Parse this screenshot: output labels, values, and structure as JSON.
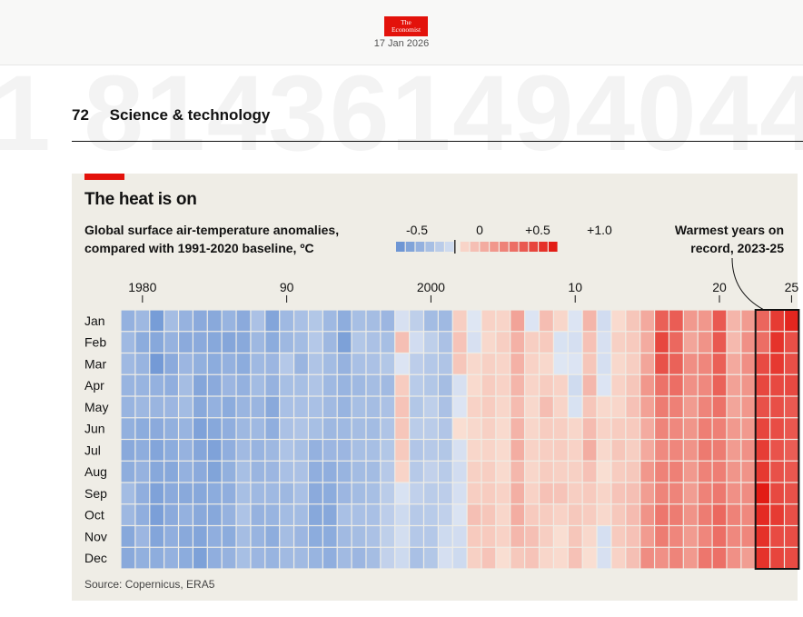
{
  "header": {
    "logo": {
      "line1": "The",
      "line2": "Economist"
    },
    "date": "17 Jan 2026",
    "background_number": "1 814361494044",
    "page_number": "72",
    "section": "Science & technology"
  },
  "source": "Source: Copernicus, ERA5",
  "colors": {
    "accent": "#e3120b",
    "panel": "#efede6",
    "cold": "#5a86c8",
    "warm": "#e3120b"
  },
  "chart_data": {
    "type": "heatmap",
    "title": "The heat is on",
    "subtitle_lines": [
      "Global surface air-temperature anomalies,",
      "compared with 1991-2020 baseline, ºC"
    ],
    "annotation_lines": [
      "Warmest years on",
      "record, 2023-25"
    ],
    "highlight_years": [
      2023,
      2025
    ],
    "months": [
      "Jan",
      "Feb",
      "Mar",
      "Apr",
      "May",
      "Jun",
      "Jul",
      "Aug",
      "Sep",
      "Oct",
      "Nov",
      "Dec"
    ],
    "years": [
      1979,
      1980,
      1981,
      1982,
      1983,
      1984,
      1985,
      1986,
      1987,
      1988,
      1989,
      1990,
      1991,
      1992,
      1993,
      1994,
      1995,
      1996,
      1997,
      1998,
      1999,
      2000,
      2001,
      2002,
      2003,
      2004,
      2005,
      2006,
      2007,
      2008,
      2009,
      2010,
      2011,
      2012,
      2013,
      2014,
      2015,
      2016,
      2017,
      2018,
      2019,
      2020,
      2021,
      2022,
      2023,
      2024,
      2025
    ],
    "x_ticks": [
      {
        "year": 1980,
        "label": "1980"
      },
      {
        "year": 1990,
        "label": "90"
      },
      {
        "year": 2000,
        "label": "2000"
      },
      {
        "year": 2010,
        "label": "10"
      },
      {
        "year": 2020,
        "label": "20"
      },
      {
        "year": 2025,
        "label": "25"
      }
    ],
    "legend": {
      "labels": [
        {
          "value": -0.5,
          "label": "-0.5"
        },
        {
          "value": 0,
          "label": "0"
        },
        {
          "value": 0.5,
          "label": "+0.5"
        },
        {
          "value": 1.0,
          "label": "+1.0"
        }
      ],
      "bins": [
        -0.6,
        -0.5,
        -0.4,
        -0.3,
        -0.2,
        -0.1,
        0.05,
        0.15,
        0.25,
        0.35,
        0.45,
        0.55,
        0.65,
        0.75,
        0.85,
        0.95
      ]
    },
    "values": [
      [
        -0.4,
        -0.34,
        -0.34,
        -0.38,
        -0.38,
        -0.41,
        -0.46,
        -0.43,
        -0.32,
        -0.35,
        -0.47,
        -0.46
      ],
      [
        -0.35,
        -0.44,
        -0.38,
        -0.38,
        -0.35,
        -0.44,
        -0.43,
        -0.39,
        -0.42,
        -0.42,
        -0.36,
        -0.41
      ],
      [
        -0.55,
        -0.47,
        -0.57,
        -0.4,
        -0.37,
        -0.45,
        -0.49,
        -0.47,
        -0.51,
        -0.53,
        -0.49,
        -0.43
      ],
      [
        -0.31,
        -0.39,
        -0.45,
        -0.42,
        -0.36,
        -0.41,
        -0.44,
        -0.47,
        -0.45,
        -0.45,
        -0.42,
        -0.4
      ],
      [
        -0.39,
        -0.45,
        -0.36,
        -0.31,
        -0.32,
        -0.38,
        -0.39,
        -0.4,
        -0.46,
        -0.4,
        -0.46,
        -0.44
      ],
      [
        -0.45,
        -0.45,
        -0.41,
        -0.48,
        -0.46,
        -0.51,
        -0.48,
        -0.45,
        -0.47,
        -0.46,
        -0.49,
        -0.52
      ],
      [
        -0.46,
        -0.47,
        -0.44,
        -0.45,
        -0.4,
        -0.47,
        -0.51,
        -0.5,
        -0.44,
        -0.47,
        -0.42,
        -0.42
      ],
      [
        -0.38,
        -0.48,
        -0.4,
        -0.36,
        -0.44,
        -0.42,
        -0.42,
        -0.41,
        -0.42,
        -0.39,
        -0.44,
        -0.39
      ],
      [
        -0.45,
        -0.46,
        -0.44,
        -0.4,
        -0.37,
        -0.35,
        -0.33,
        -0.3,
        -0.3,
        -0.27,
        -0.31,
        -0.3
      ],
      [
        -0.28,
        -0.35,
        -0.34,
        -0.32,
        -0.37,
        -0.34,
        -0.38,
        -0.37,
        -0.34,
        -0.39,
        -0.38,
        -0.36
      ],
      [
        -0.49,
        -0.44,
        -0.36,
        -0.39,
        -0.46,
        -0.42,
        -0.35,
        -0.36,
        -0.34,
        -0.38,
        -0.43,
        -0.38
      ],
      [
        -0.34,
        -0.35,
        -0.23,
        -0.3,
        -0.29,
        -0.28,
        -0.27,
        -0.29,
        -0.35,
        -0.32,
        -0.31,
        -0.33
      ],
      [
        -0.29,
        -0.32,
        -0.37,
        -0.3,
        -0.29,
        -0.26,
        -0.3,
        -0.28,
        -0.29,
        -0.32,
        -0.36,
        -0.33
      ],
      [
        -0.24,
        -0.23,
        -0.26,
        -0.26,
        -0.29,
        -0.3,
        -0.4,
        -0.42,
        -0.45,
        -0.47,
        -0.44,
        -0.38
      ],
      [
        -0.34,
        -0.35,
        -0.32,
        -0.34,
        -0.33,
        -0.35,
        -0.36,
        -0.42,
        -0.44,
        -0.47,
        -0.44,
        -0.42
      ],
      [
        -0.43,
        -0.52,
        -0.39,
        -0.38,
        -0.38,
        -0.34,
        -0.36,
        -0.38,
        -0.36,
        -0.29,
        -0.33,
        -0.33
      ],
      [
        -0.3,
        -0.24,
        -0.29,
        -0.34,
        -0.3,
        -0.31,
        -0.3,
        -0.32,
        -0.32,
        -0.29,
        -0.31,
        -0.36
      ],
      [
        -0.31,
        -0.28,
        -0.28,
        -0.31,
        -0.31,
        -0.32,
        -0.3,
        -0.32,
        -0.3,
        -0.29,
        -0.28,
        -0.31
      ],
      [
        -0.36,
        -0.3,
        -0.24,
        -0.33,
        -0.28,
        -0.26,
        -0.24,
        -0.22,
        -0.2,
        -0.19,
        -0.18,
        -0.16
      ],
      [
        -0.05,
        0.15,
        -0.02,
        0.09,
        0.13,
        0.12,
        0.1,
        0.05,
        -0.04,
        -0.1,
        -0.07,
        -0.1
      ],
      [
        -0.18,
        -0.08,
        -0.19,
        -0.21,
        -0.24,
        -0.2,
        -0.25,
        -0.22,
        -0.17,
        -0.22,
        -0.23,
        -0.29
      ],
      [
        -0.32,
        -0.18,
        -0.23,
        -0.24,
        -0.18,
        -0.2,
        -0.22,
        -0.16,
        -0.2,
        -0.21,
        -0.23,
        -0.24
      ],
      [
        -0.34,
        -0.28,
        -0.26,
        -0.31,
        -0.28,
        -0.25,
        -0.24,
        -0.21,
        -0.19,
        -0.17,
        -0.1,
        -0.06
      ],
      [
        0.08,
        0.13,
        0.12,
        -0.05,
        -0.02,
        0.0,
        -0.05,
        -0.08,
        -0.06,
        -0.03,
        -0.08,
        -0.1
      ],
      [
        -0.01,
        -0.05,
        0.03,
        0.02,
        0.06,
        0.03,
        0.04,
        0.07,
        0.08,
        0.15,
        0.1,
        0.07
      ],
      [
        0.06,
        0.03,
        0.07,
        0.09,
        0.09,
        0.07,
        0.05,
        0.08,
        0.09,
        0.12,
        0.1,
        0.13
      ],
      [
        0.05,
        0.08,
        0.05,
        0.06,
        0.04,
        0.02,
        0.02,
        0.02,
        0.06,
        0.04,
        0.06,
        0.0
      ],
      [
        0.29,
        0.22,
        0.22,
        0.2,
        0.17,
        0.21,
        0.24,
        0.19,
        0.23,
        0.24,
        0.19,
        0.11
      ],
      [
        -0.02,
        0.08,
        0.06,
        0.05,
        0.03,
        0.04,
        0.06,
        0.04,
        0.06,
        0.1,
        0.15,
        0.13
      ],
      [
        0.16,
        0.1,
        0.03,
        0.09,
        0.16,
        0.09,
        0.08,
        0.09,
        0.14,
        0.09,
        0.08,
        0.04
      ],
      [
        0.04,
        -0.04,
        -0.01,
        0.06,
        0.05,
        0.08,
        0.09,
        0.07,
        0.13,
        0.06,
        0.0,
        0.02
      ],
      [
        -0.02,
        -0.06,
        -0.02,
        -0.09,
        -0.04,
        0.04,
        0.06,
        0.07,
        0.08,
        0.11,
        0.12,
        0.14
      ],
      [
        0.2,
        0.14,
        0.12,
        0.19,
        0.12,
        0.17,
        0.24,
        0.14,
        0.1,
        0.09,
        0.03,
        0.0
      ],
      [
        -0.08,
        -0.05,
        -0.06,
        -0.02,
        0.03,
        0.06,
        0.03,
        0.0,
        0.05,
        0.03,
        -0.06,
        -0.05
      ],
      [
        0.02,
        0.07,
        0.03,
        0.06,
        0.04,
        0.09,
        0.12,
        0.09,
        0.13,
        0.11,
        0.1,
        0.06
      ],
      [
        0.12,
        0.1,
        0.08,
        0.12,
        0.14,
        0.1,
        0.08,
        0.11,
        0.15,
        0.17,
        0.14,
        0.15
      ],
      [
        0.26,
        0.25,
        0.28,
        0.35,
        0.3,
        0.25,
        0.26,
        0.35,
        0.32,
        0.37,
        0.33,
        0.4
      ],
      [
        0.62,
        0.74,
        0.69,
        0.53,
        0.48,
        0.44,
        0.41,
        0.45,
        0.44,
        0.51,
        0.48,
        0.38
      ],
      [
        0.63,
        0.58,
        0.61,
        0.55,
        0.46,
        0.42,
        0.43,
        0.46,
        0.44,
        0.48,
        0.43,
        0.44
      ],
      [
        0.34,
        0.28,
        0.39,
        0.38,
        0.33,
        0.36,
        0.37,
        0.34,
        0.32,
        0.37,
        0.33,
        0.34
      ],
      [
        0.35,
        0.37,
        0.43,
        0.42,
        0.44,
        0.47,
        0.49,
        0.45,
        0.45,
        0.48,
        0.43,
        0.51
      ],
      [
        0.65,
        0.65,
        0.62,
        0.61,
        0.53,
        0.46,
        0.48,
        0.47,
        0.5,
        0.58,
        0.55,
        0.54
      ],
      [
        0.2,
        0.18,
        0.26,
        0.3,
        0.28,
        0.34,
        0.33,
        0.36,
        0.38,
        0.45,
        0.42,
        0.38
      ],
      [
        0.33,
        0.38,
        0.39,
        0.36,
        0.35,
        0.34,
        0.38,
        0.37,
        0.4,
        0.42,
        0.43,
        0.32
      ],
      [
        0.59,
        0.55,
        0.72,
        0.74,
        0.69,
        0.75,
        0.79,
        0.81,
        0.95,
        0.88,
        0.85,
        0.84
      ],
      [
        0.8,
        0.84,
        0.81,
        0.73,
        0.7,
        0.71,
        0.68,
        0.69,
        0.73,
        0.8,
        0.72,
        0.75
      ],
      [
        0.9,
        0.7,
        0.7,
        0.73,
        0.65,
        0.66,
        0.63,
        0.66,
        0.69,
        0.7,
        0.71,
        0.72
      ]
    ]
  }
}
